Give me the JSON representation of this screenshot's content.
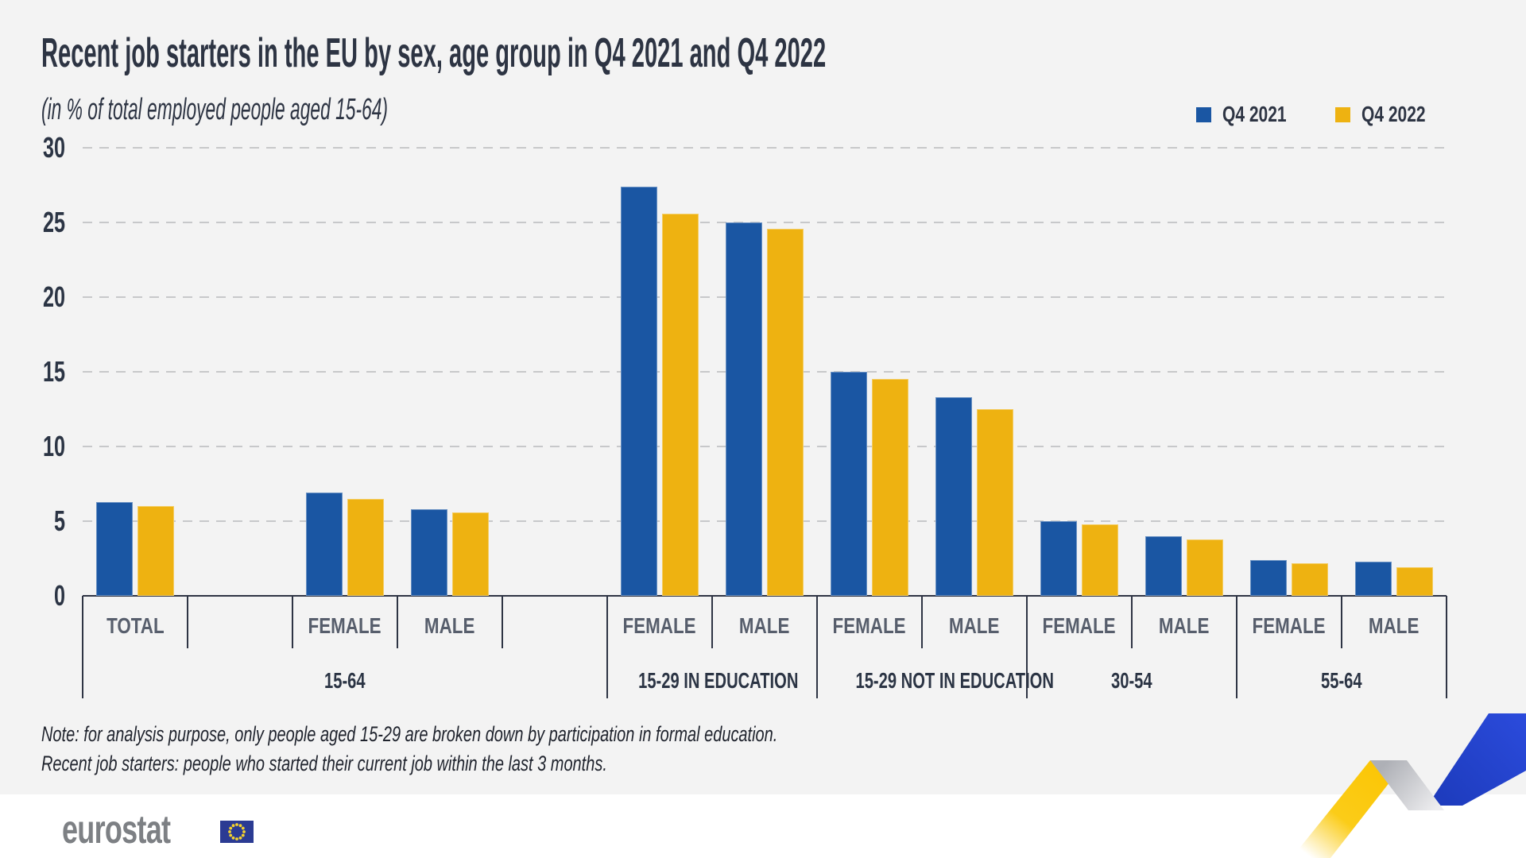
{
  "page": {
    "background": "#F3F3F3",
    "footer_background": "#FFFFFF"
  },
  "chart_data": {
    "type": "bar",
    "title": "Recent job starters in the EU by sex, age group in Q4 2021 and Q4 2022",
    "subtitle": "(in % of total employed people aged 15-64)",
    "xlabel": "",
    "ylabel": "",
    "ylim": [
      0,
      30
    ],
    "yticks": [
      0,
      5,
      10,
      15,
      20,
      25,
      30
    ],
    "grid": "horizontal-dashed",
    "legend_position": "top-right",
    "series": [
      {
        "name": "Q4 2021",
        "color": "#1A56A3"
      },
      {
        "name": "Q4 2022",
        "color": "#EEB211"
      }
    ],
    "groups": [
      {
        "label": "15-64",
        "cells": [
          {
            "label": "TOTAL",
            "values": [
              6.3,
              6.0
            ]
          },
          {
            "label": "",
            "values": null
          },
          {
            "label": "FEMALE",
            "values": [
              6.9,
              6.5
            ]
          },
          {
            "label": "MALE",
            "values": [
              5.8,
              5.6
            ]
          },
          {
            "label": "",
            "values": null
          }
        ]
      },
      {
        "label": "15-29 IN EDUCATION",
        "cells": [
          {
            "label": "FEMALE",
            "values": [
              27.4,
              25.6
            ]
          },
          {
            "label": "MALE",
            "values": [
              25.0,
              24.6
            ]
          }
        ]
      },
      {
        "label": "15-29 NOT IN EDUCATION",
        "cells": [
          {
            "label": "FEMALE",
            "values": [
              15.0,
              14.5
            ]
          },
          {
            "label": "MALE",
            "values": [
              13.3,
              12.5
            ]
          }
        ]
      },
      {
        "label": "30-54",
        "cells": [
          {
            "label": "FEMALE",
            "values": [
              5.0,
              4.8
            ]
          },
          {
            "label": "MALE",
            "values": [
              4.0,
              3.8
            ]
          }
        ]
      },
      {
        "label": "55-64",
        "cells": [
          {
            "label": "FEMALE",
            "values": [
              2.4,
              2.2
            ]
          },
          {
            "label": "MALE",
            "values": [
              2.3,
              1.9
            ]
          }
        ]
      }
    ]
  },
  "notes": {
    "line1": "Note: for analysis purpose, only people aged 15-29 are broken down by participation in formal education.",
    "line2": "Recent job starters: people who started their current job within the last 3 months."
  },
  "footer": {
    "logo_text": "eurostat"
  },
  "colors": {
    "text_dark": "#2D3443",
    "text_gray": "#575E6C",
    "gridline": "#C7C8CA",
    "axis": "#2E3444",
    "logo_gray": "#7D8084",
    "flag_blue": "#2B3B93",
    "flag_star": "#F6D32D",
    "ribbon_yellow": "#FBC70B",
    "ribbon_gray": "#B6B7BC",
    "ribbon_blue": "#2647D7"
  }
}
